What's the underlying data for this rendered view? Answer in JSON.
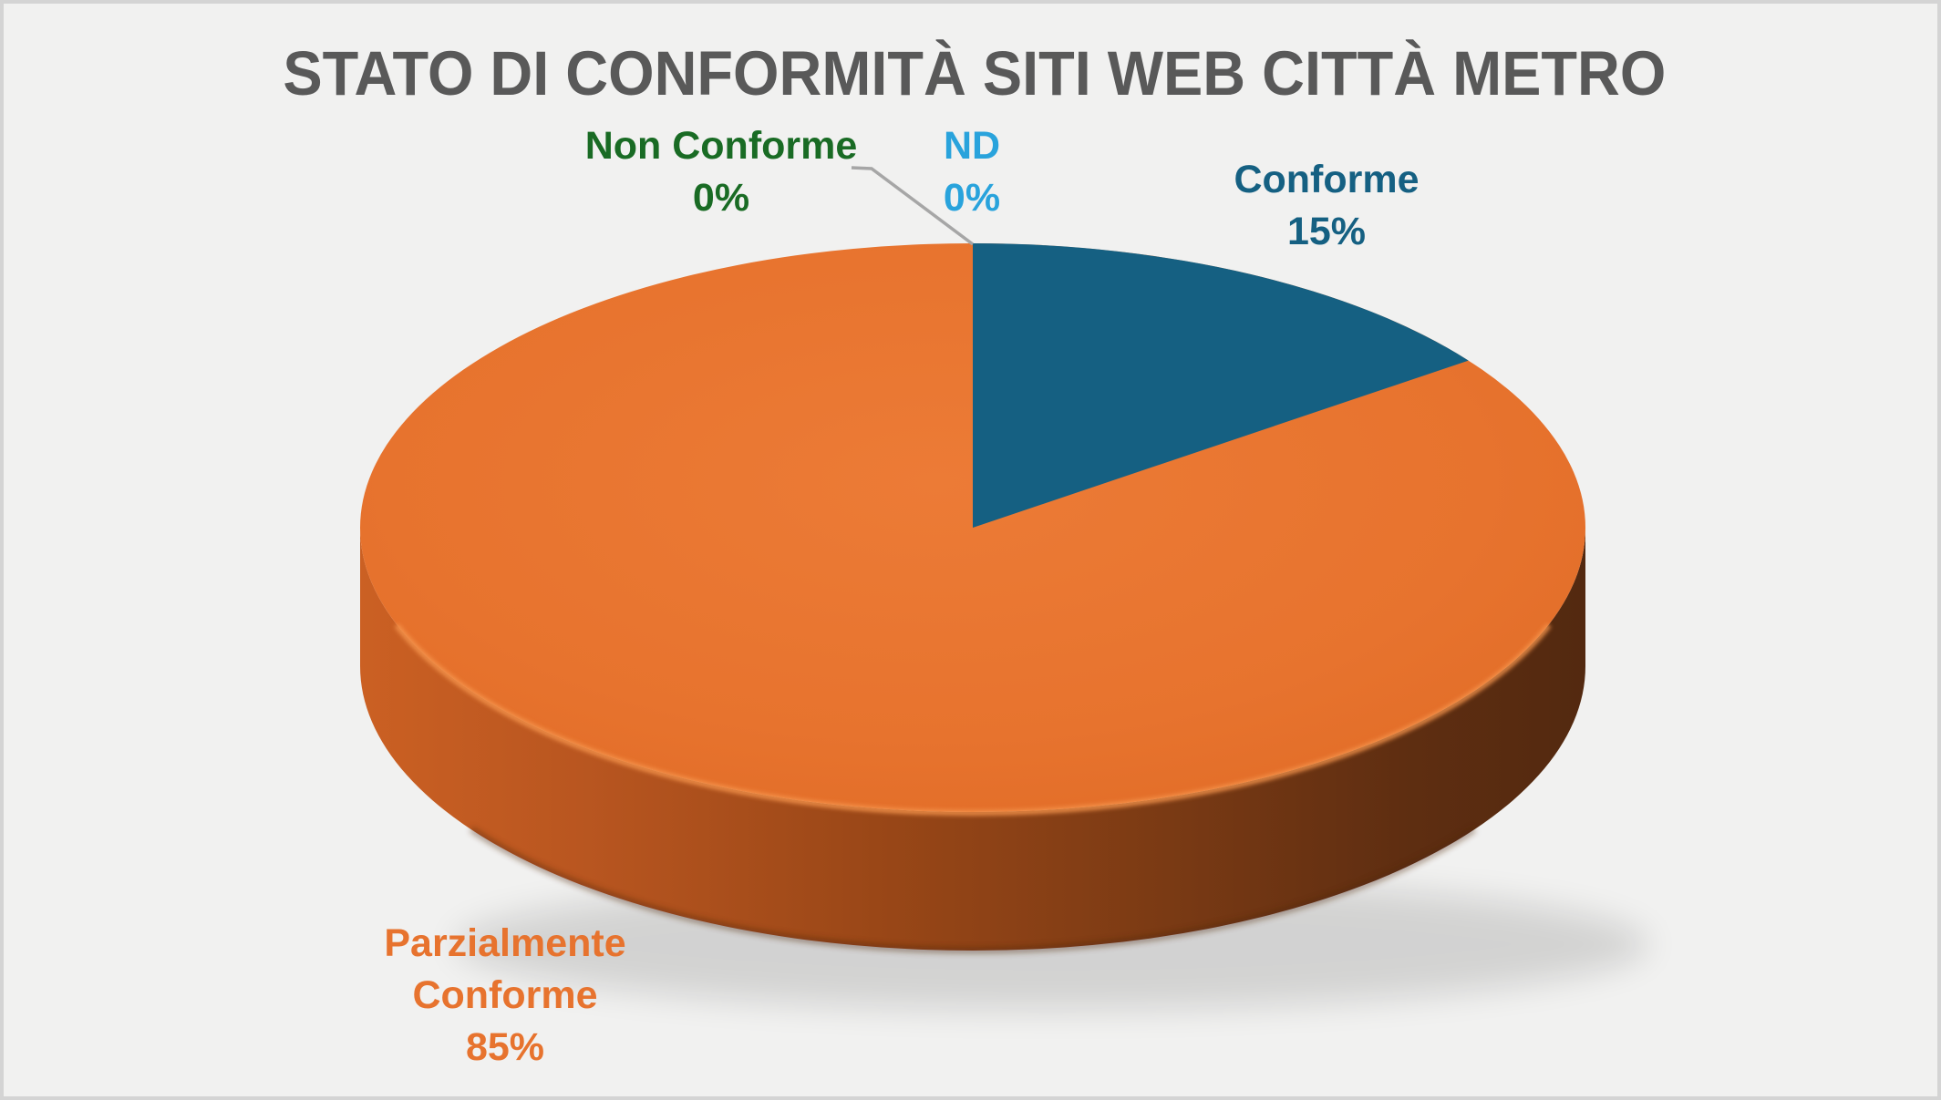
{
  "header": {
    "title": "STATO DI CONFORMITÀ SITI WEB CITTÀ METRO"
  },
  "colors": {
    "background": "#F1F1F0",
    "frame_border": "#D4D4D4",
    "title": "#595959",
    "leader_line": "#A6A6A6",
    "conforme": "#156082",
    "parzialmente_conforme": "#E7732E",
    "non_conforme": "#196B24",
    "nd": "#29A3DC"
  },
  "labels": {
    "conforme": {
      "line1": "Conforme",
      "line2": "15%"
    },
    "parzialmente_conforme": {
      "line1": "Parzialmente",
      "line2": "Conforme",
      "line3": "85%"
    },
    "non_conforme": {
      "line1": "Non Conforme",
      "line2": "0%"
    },
    "nd": {
      "line1": "ND",
      "line2": "0%"
    }
  },
  "chart_data": {
    "type": "pie",
    "style": "3d-pie",
    "title": "STATO DI CONFORMITÀ SITI WEB CITTÀ METRO",
    "categories": [
      "Conforme",
      "Parzialmente Conforme",
      "Non Conforme",
      "ND"
    ],
    "values": [
      15,
      85,
      0,
      0
    ],
    "unit": "percent",
    "colors": [
      "#156082",
      "#E7732E",
      "#196B24",
      "#29A3DC"
    ],
    "start_angle_deg": 0,
    "direction": "clockwise",
    "legend": "none",
    "data_labels": "outside: category name + percentage",
    "leader_lines": [
      "Non Conforme"
    ]
  }
}
